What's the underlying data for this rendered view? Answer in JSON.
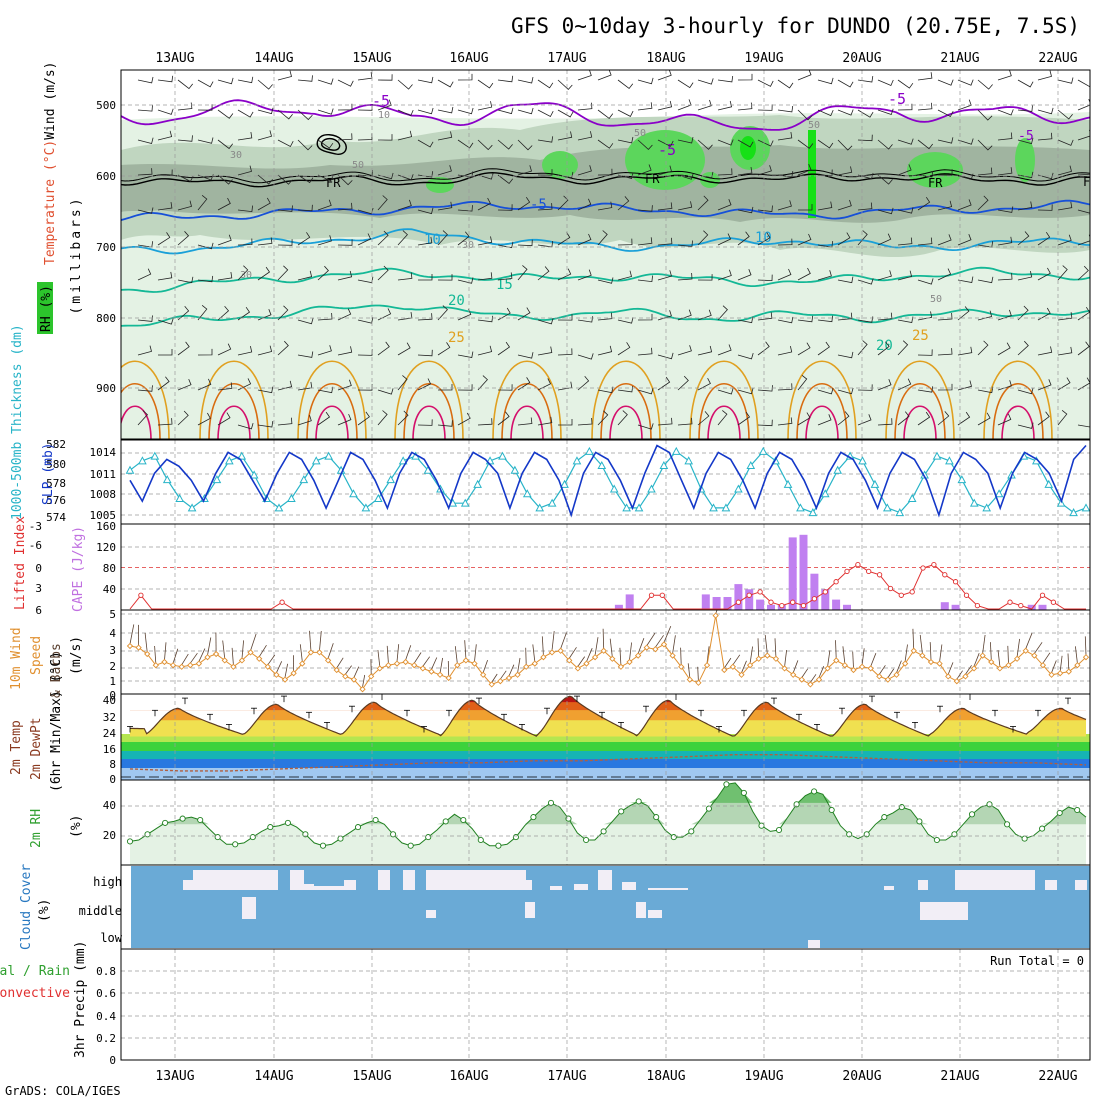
{
  "header": {
    "title": "GFS 0~10day 3-hourly for DUNDO (20.75E, 7.5S)",
    "credit": "GrADS: COLA/IGES"
  },
  "colors": {
    "purple": "#8a00c8",
    "blue": "#1650d8",
    "cyan": "#1aa0d8",
    "teal": "#14b896",
    "orange": "#e0a020",
    "darkorange": "#d86c10",
    "magenta": "#d4106c",
    "rh_light": "#e4f2e4",
    "rh_mid": "#c0d6c0",
    "rh_dark": "#a0b4a0",
    "rh_green": "#5cd65c",
    "rh_bright": "#16e016",
    "slp": "#1438c8",
    "thick": "#28b4c8",
    "cape": "#c080f0",
    "li": "#e03030",
    "wind": "#e09030",
    "cloud": "#6aaad6",
    "cloud_clear": "#f2eef6",
    "rh2m": "#30a030"
  },
  "chart_data": [
    {
      "id": "upper_air",
      "type": "heatmap",
      "dates": [
        "13AUG",
        "14AUG",
        "15AUG",
        "16AUG",
        "17AUG",
        "18AUG",
        "19AUG",
        "20AUG",
        "21AUG",
        "22AUG"
      ],
      "ylabel_parts": [
        "RH (%)",
        "Temperature (°C)",
        "Wind (m/s)"
      ],
      "ylabel2": "(millibars)",
      "yticks": [
        "500",
        "600",
        "700",
        "800",
        "900"
      ],
      "ylim": [
        970,
        450
      ],
      "isotherms": [
        {
          "label": "-5",
          "p": [
            515,
            510,
            500,
            520,
            505,
            515,
            530,
            520,
            505,
            515,
            510
          ],
          "color": "purple"
        },
        {
          "label": "FR",
          "p": [
            605,
            610,
            605,
            608,
            600,
            605,
            602,
            604,
            600,
            606,
            605
          ],
          "color": "black"
        },
        {
          "label": "-5",
          "p": [
            660,
            655,
            650,
            645,
            640,
            645,
            650,
            655,
            648,
            645,
            640
          ],
          "color": "blue"
        },
        {
          "label": "10",
          "p": [
            705,
            700,
            690,
            680,
            690,
            700,
            695,
            690,
            700,
            695,
            690
          ],
          "color": "cyan"
        },
        {
          "label": "15",
          "p": [
            760,
            750,
            740,
            735,
            745,
            740,
            745,
            750,
            740,
            735,
            740
          ],
          "color": "teal"
        },
        {
          "label": "20",
          "p": [
            810,
            800,
            790,
            780,
            800,
            790,
            800,
            795,
            800,
            790,
            795
          ],
          "color": "teal"
        }
      ],
      "contour_labels": [
        "-5",
        "-5",
        "-5",
        "-5",
        "FR",
        "FR",
        "FR",
        "FR",
        "-5",
        "10",
        "10",
        "15",
        "20",
        "20",
        "25",
        "25",
        "50",
        "50",
        "50",
        "50",
        "30",
        "30",
        "30",
        "10"
      ]
    },
    {
      "id": "slp_thickness",
      "type": "line",
      "ylabel_left": "1000-500mb Thickness (dm)",
      "ylabel_right": "SLP (mb)",
      "ticks_left": [
        "582",
        "580",
        "578",
        "576",
        "574"
      ],
      "ticks_right": [
        "1014",
        "1011",
        "1008",
        "1005"
      ],
      "thickness_lim": [
        573.5,
        582
      ],
      "slp_lim": [
        1004,
        1015.5
      ],
      "slp": [
        1010,
        1007,
        1011,
        1013,
        1012,
        1010,
        1007,
        1011,
        1014,
        1013,
        1010,
        1007,
        1011,
        1014,
        1013,
        1010,
        1006,
        1010,
        1014,
        1013,
        1010,
        1006,
        1011,
        1014,
        1013,
        1010,
        1006,
        1011,
        1014,
        1013,
        1011,
        1006,
        1011,
        1014,
        1013,
        1010,
        1005,
        1011,
        1014,
        1013,
        1010,
        1006,
        1011,
        1015,
        1014,
        1010,
        1006,
        1011,
        1014,
        1013,
        1010,
        1006,
        1011,
        1014,
        1013,
        1010,
        1006,
        1011,
        1014,
        1013,
        1010,
        1006,
        1011,
        1014,
        1013,
        1010,
        1005,
        1011,
        1014,
        1013,
        1011,
        1006,
        1011,
        1014,
        1013,
        1011,
        1007,
        1013,
        1015
      ],
      "thickness": [
        579,
        580,
        580.5,
        578,
        576,
        575,
        576,
        578,
        580,
        580.5,
        578.5,
        576,
        575,
        576,
        578,
        580,
        580.5,
        579,
        576.5,
        575,
        576,
        578,
        580,
        580.5,
        579,
        577,
        575.5,
        575.5,
        577.5,
        580,
        580.5,
        579,
        576.5,
        575,
        575.5,
        577.5,
        580,
        581,
        579.5,
        577,
        575,
        575,
        577,
        579.5,
        581,
        580,
        577,
        575,
        575,
        577,
        579.5,
        581,
        580,
        577.5,
        575,
        574.5,
        576.5,
        579,
        580.5,
        580,
        577.5,
        575,
        574.5,
        576,
        578.5,
        580.5,
        580,
        578,
        575.5,
        575,
        576.5,
        578.5,
        580.5,
        580,
        577.5,
        575.5,
        574.5,
        575
      ]
    },
    {
      "id": "cape_li",
      "type": "bar",
      "ylabel_left": "Lifted Index",
      "ylabel_right": "CAPE (J/kg)",
      "ticks_left": [
        "-6",
        "-3",
        "0",
        "3",
        "6"
      ],
      "ticks_right": [
        "160",
        "120",
        "80",
        "40"
      ],
      "cape_lim": [
        0,
        160
      ],
      "li_lim": [
        6,
        -6
      ],
      "cape": [
        0,
        0,
        0,
        0,
        0,
        0,
        0,
        0,
        0,
        0,
        0,
        0,
        0,
        0,
        0,
        0,
        0,
        0,
        0,
        0,
        0,
        0,
        0,
        0,
        0,
        0,
        0,
        0,
        0,
        0,
        0,
        0,
        0,
        0,
        0,
        0,
        0,
        0,
        0,
        0,
        0,
        0,
        0,
        0,
        0,
        10,
        30,
        0,
        0,
        0,
        0,
        0,
        0,
        30,
        25,
        25,
        50,
        40,
        20,
        10,
        10,
        140,
        145,
        70,
        40,
        20,
        10,
        0,
        0,
        0,
        0,
        0,
        0,
        0,
        0,
        15,
        10,
        0,
        0,
        0,
        0,
        0,
        0,
        10,
        10,
        0,
        0,
        0,
        0
      ],
      "li": [
        6,
        4,
        6,
        6,
        6,
        6,
        6,
        6,
        6,
        6,
        6,
        6,
        6,
        6,
        5,
        6,
        6,
        6,
        6,
        6,
        6,
        6,
        6,
        6,
        6,
        6,
        6,
        6,
        6,
        6,
        6,
        6,
        6,
        6,
        6,
        6,
        6,
        6,
        6,
        6,
        6,
        6,
        6,
        6,
        6,
        6,
        6,
        6,
        4,
        4,
        6,
        6,
        6,
        6,
        6,
        6,
        5,
        4,
        3.5,
        5,
        5.5,
        5,
        5.5,
        4.5,
        3.5,
        2,
        0.5,
        -0.5,
        0.5,
        1,
        3,
        4,
        3.5,
        0,
        -0.5,
        1,
        2,
        4,
        5.5,
        6,
        6,
        5,
        5.5,
        6,
        4,
        5,
        6,
        6,
        6
      ]
    },
    {
      "id": "wind10m",
      "type": "line",
      "ylabel_parts": [
        "10m Wind",
        "Speed",
        "& Barbs",
        "(m/s)"
      ],
      "ticks": [
        "5",
        "4",
        "3",
        "2",
        "1",
        "0"
      ],
      "ylim": [
        0,
        5
      ],
      "speed": [
        3,
        2.9,
        2.5,
        1.8,
        2,
        1.8,
        1.7,
        1.8,
        1.9,
        2.3,
        2.5,
        2.1,
        1.7,
        2.1,
        2.6,
        2.2,
        1.7,
        1.2,
        0.9,
        1.3,
        1.9,
        2.6,
        2.6,
        2.1,
        1.5,
        1.1,
        0.9,
        0.3,
        1.1,
        1.6,
        1.8,
        1.9,
        2,
        1.8,
        1.6,
        1.4,
        1.2,
        1,
        1.8,
        2.1,
        1.9,
        1.2,
        0.6,
        0.8,
        1,
        1.2,
        1.7,
        1.9,
        2.3,
        2.6,
        2.7,
        2.1,
        1.6,
        1.9,
        2.3,
        2.7,
        2.2,
        1.7,
        2,
        2.4,
        2.9,
        2.8,
        3.1,
        2.4,
        1.7,
        0.9,
        0.7,
        1.8,
        4.9,
        1.5,
        1.7,
        1.2,
        1.8,
        2.2,
        2.4,
        2.2,
        1.6,
        1.2,
        0.9,
        0.6,
        0.9,
        1.6,
        2.1,
        1.8,
        1.5,
        1.7,
        1.6,
        1.1,
        0.9,
        1.2,
        1.9,
        2.7,
        2.4,
        2,
        1.9,
        1.1,
        0.8,
        1.1,
        1.6,
        2.4,
        2,
        1.6,
        1.8,
        2.2,
        2.7,
        2.4,
        1.8,
        1.2,
        1.3,
        1.4,
        1.8,
        2.3
      ]
    },
    {
      "id": "temp2m",
      "type": "area",
      "ylabel_parts": [
        "2m Temp",
        "2m DewPt",
        "(6hr Min/Max) (°C)"
      ],
      "ticks": [
        "40",
        "32",
        "24",
        "16",
        "8",
        "0"
      ],
      "ylim": [
        0,
        40
      ],
      "temp_max": [
        34,
        36,
        37,
        38,
        40,
        38,
        37,
        36,
        34
      ],
      "temp_min": [
        21,
        21,
        21,
        20,
        21,
        20,
        20,
        20,
        21,
        22
      ],
      "dewpt": [
        4,
        3,
        3,
        4,
        5,
        6,
        7,
        7,
        8,
        8,
        9,
        10,
        11,
        11,
        10,
        9,
        8,
        7,
        7,
        6
      ]
    },
    {
      "id": "rh2m",
      "type": "area",
      "ylabel": "2m RH",
      "unit": "(%)",
      "ticks": [
        "40",
        "20"
      ],
      "ylim": [
        0,
        56
      ],
      "values": [
        13,
        14,
        18,
        22,
        26,
        27,
        29,
        30,
        28,
        22,
        16,
        11,
        11,
        12,
        16,
        20,
        23,
        24,
        26,
        23,
        18,
        12,
        10,
        11,
        15,
        19,
        23,
        26,
        28,
        25,
        18,
        12,
        10,
        11,
        16,
        21,
        27,
        32,
        28,
        22,
        14,
        10,
        10,
        11,
        16,
        24,
        30,
        36,
        40,
        37,
        29,
        19,
        14,
        14,
        20,
        27,
        34,
        38,
        41,
        38,
        30,
        21,
        16,
        16,
        20,
        28,
        36,
        44,
        53,
        54,
        47,
        34,
        24,
        20,
        21,
        30,
        39,
        45,
        48,
        46,
        35,
        24,
        18,
        15,
        18,
        25,
        30,
        33,
        37,
        35,
        27,
        18,
        14,
        14,
        18,
        25,
        32,
        37,
        39,
        35,
        25,
        18,
        15,
        17,
        22,
        27,
        33,
        37,
        35,
        30
      ]
    },
    {
      "id": "cloud_cover",
      "type": "heatmap",
      "ylabel": "Cloud Cover",
      "unit": "(%)",
      "levels": [
        "high",
        "middle",
        "low"
      ]
    },
    {
      "id": "precip",
      "type": "bar",
      "ylabel_parts": [
        "Total / Rain",
        "Convective"
      ],
      "ylabel_axis": "3hr Precip (mm)",
      "ticks": [
        "0.8",
        "0.6",
        "0.4",
        "0.2",
        "0"
      ],
      "ylim": [
        0,
        0.9
      ],
      "run_total": "Run Total = 0"
    }
  ]
}
